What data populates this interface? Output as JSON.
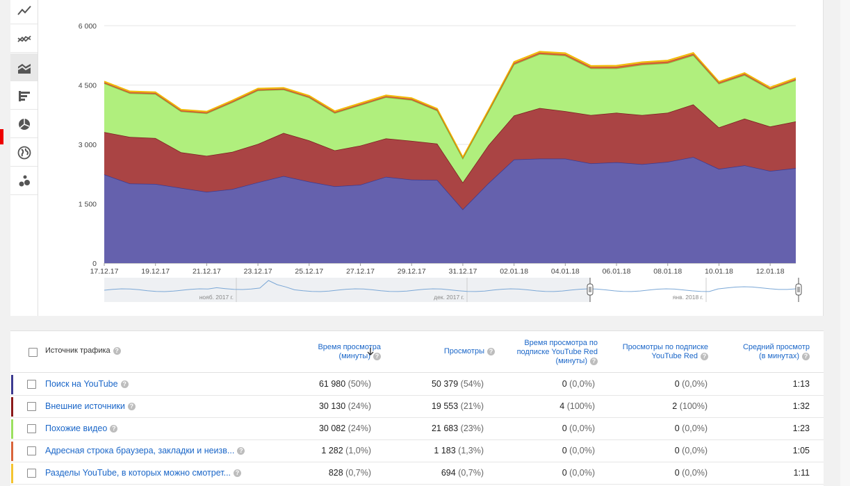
{
  "toolbar": {
    "icons": [
      "line-chart-icon",
      "multi-line-chart-icon",
      "stacked-area-chart-icon",
      "bar-chart-icon",
      "pie-chart-icon",
      "globe-map-icon",
      "bubble-chart-icon"
    ],
    "active_index": 2
  },
  "chart_data": {
    "type": "area",
    "stacked": true,
    "y_ticks": [
      "6 000",
      "4 500",
      "3 000",
      "1 500",
      "0"
    ],
    "ylim": [
      0,
      6000
    ],
    "x_labels": [
      "17.12.17",
      "19.12.17",
      "21.12.17",
      "23.12.17",
      "25.12.17",
      "27.12.17",
      "29.12.17",
      "31.12.17",
      "02.01.18",
      "04.01.18",
      "06.01.18",
      "08.01.18",
      "10.01.18",
      "12.01.18"
    ],
    "x": [
      "17.12.17",
      "18.12.17",
      "19.12.17",
      "20.12.17",
      "21.12.17",
      "22.12.17",
      "23.12.17",
      "24.12.17",
      "25.12.17",
      "26.12.17",
      "27.12.17",
      "28.12.17",
      "29.12.17",
      "30.12.17",
      "31.12.17",
      "01.01.18",
      "02.01.18",
      "03.01.18",
      "04.01.18",
      "05.01.18",
      "06.01.18",
      "07.01.18",
      "08.01.18",
      "09.01.18",
      "10.01.18",
      "11.01.18",
      "12.01.18",
      "13.01.18"
    ],
    "series": [
      {
        "name": "Поиск на YouTube",
        "color": "#6561ad",
        "line": "#3c3a90",
        "values": [
          2240,
          2010,
          2000,
          1900,
          1800,
          1870,
          2040,
          2200,
          2060,
          1940,
          1980,
          2180,
          2110,
          2100,
          1360,
          2020,
          2620,
          2640,
          2640,
          2520,
          2550,
          2500,
          2560,
          2680,
          2380,
          2470,
          2330,
          2400
        ]
      },
      {
        "name": "Внешние источники",
        "color": "#aa4444",
        "line": "#7a1f1f",
        "values": [
          1070,
          1180,
          1160,
          900,
          910,
          940,
          970,
          1090,
          1040,
          910,
          990,
          970,
          980,
          920,
          680,
          960,
          1110,
          1280,
          1200,
          1220,
          1250,
          1240,
          1240,
          1330,
          1050,
          1180,
          1120,
          1180
        ]
      },
      {
        "name": "Похожие видео",
        "color": "#b0ef7d",
        "line": "#7acc40",
        "values": [
          1230,
          1100,
          1110,
          1030,
          1070,
          1250,
          1350,
          1090,
          1080,
          940,
          1020,
          1040,
          1030,
          830,
          600,
          840,
          1290,
          1360,
          1400,
          1180,
          1120,
          1270,
          1250,
          1240,
          1100,
          1100,
          940,
          1040
        ]
      },
      {
        "name": "Адресная строка браузера, закладки и неизв...",
        "color": "#d9643a",
        "line": "#c2502a",
        "values": [
          30,
          30,
          30,
          30,
          30,
          30,
          30,
          30,
          30,
          30,
          30,
          30,
          30,
          30,
          25,
          30,
          40,
          40,
          40,
          40,
          45,
          45,
          45,
          40,
          35,
          35,
          30,
          35
        ]
      },
      {
        "name": "Разделы YouTube, в которых можно смотрет...",
        "color": "#f4c430",
        "line": "#f0b800",
        "values": [
          25,
          25,
          25,
          25,
          25,
          25,
          25,
          25,
          25,
          25,
          25,
          25,
          25,
          25,
          20,
          25,
          30,
          30,
          30,
          30,
          30,
          30,
          30,
          30,
          25,
          25,
          25,
          25
        ]
      }
    ]
  },
  "navigator": {
    "labels": [
      "нояб. 2017 г.",
      "дек. 2017 г.",
      "янв. 2018 г."
    ]
  },
  "table": {
    "headers": {
      "source": "Источник трафика",
      "watch_time": [
        "Время просмотра",
        "(минуты)"
      ],
      "views": [
        "Просмотры"
      ],
      "red_watch_time": [
        "Время просмотра по",
        "подписке YouTube Red",
        "(минуты)"
      ],
      "red_views": [
        "Просмотры по подписке",
        "YouTube Red"
      ],
      "avg_view": [
        "Средний просмотр",
        "(в минутах)"
      ]
    },
    "sort_icon": "arrow-down-icon",
    "rows": [
      {
        "color": "#3c3a90",
        "source": "Поиск на YouTube",
        "watch": "61 980",
        "watch_pct": "(50%)",
        "views": "50 379",
        "views_pct": "(54%)",
        "rwatch": "0",
        "rwatch_pct": "(0,0%)",
        "rviews": "0",
        "rviews_pct": "(0,0%)",
        "avg": "1:13"
      },
      {
        "color": "#8b1a1a",
        "source": "Внешние источники",
        "watch": "30 130",
        "watch_pct": "(24%)",
        "views": "19 553",
        "views_pct": "(21%)",
        "rwatch": "4",
        "rwatch_pct": "(100%)",
        "rviews": "2",
        "rviews_pct": "(100%)",
        "avg": "1:32"
      },
      {
        "color": "#9be05f",
        "source": "Похожие видео",
        "watch": "30 082",
        "watch_pct": "(24%)",
        "views": "21 683",
        "views_pct": "(23%)",
        "rwatch": "0",
        "rwatch_pct": "(0,0%)",
        "rviews": "0",
        "rviews_pct": "(0,0%)",
        "avg": "1:23"
      },
      {
        "color": "#d9643a",
        "source": "Адресная строка браузера, закладки и неизв...",
        "watch": "1 282",
        "watch_pct": "(1,0%)",
        "views": "1 183",
        "views_pct": "(1,3%)",
        "rwatch": "0",
        "rwatch_pct": "(0,0%)",
        "rviews": "0",
        "rviews_pct": "(0,0%)",
        "avg": "1:05"
      },
      {
        "color": "#f4c430",
        "source": "Разделы YouTube, в которых можно смотрет...",
        "watch": "828",
        "watch_pct": "(0,7%)",
        "views": "694",
        "views_pct": "(0,7%)",
        "rwatch": "0",
        "rwatch_pct": "(0,0%)",
        "rviews": "0",
        "rviews_pct": "(0,0%)",
        "avg": "1:11"
      }
    ]
  }
}
